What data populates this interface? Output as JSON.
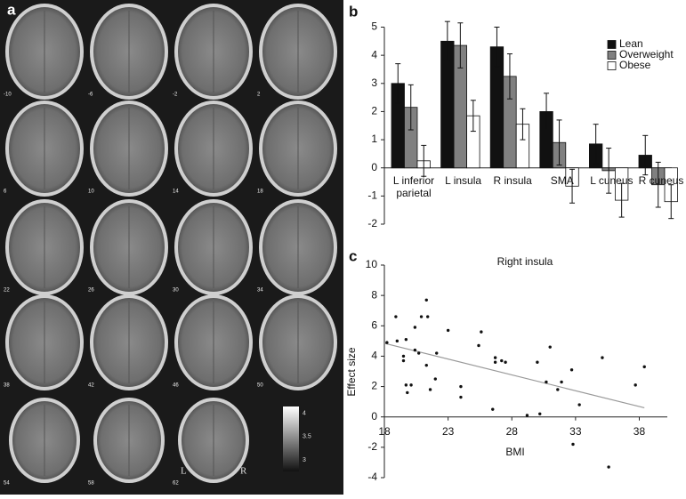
{
  "figure": {
    "panel_labels": [
      "a",
      "b",
      "c"
    ],
    "slices": [
      "-10",
      "-6",
      "-2",
      "2",
      "6",
      "10",
      "14",
      "18",
      "22",
      "26",
      "30",
      "34",
      "38",
      "42",
      "46",
      "50",
      "54",
      "58",
      "62"
    ],
    "colorbar_ticks": [
      {
        "value": 4,
        "label": "4"
      },
      {
        "value": 3.5,
        "label": "3.5"
      },
      {
        "value": 3,
        "label": "3"
      }
    ],
    "orientation": [
      "L",
      "R"
    ]
  },
  "chart_data": [
    {
      "type": "bar",
      "categories": [
        "L inferior parietal",
        "L insula",
        "R insula",
        "SMA",
        "L cuneus",
        "R cuneus"
      ],
      "series": [
        {
          "name": "Lean",
          "color": "#111111",
          "values": [
            3.0,
            4.5,
            4.3,
            2.0,
            0.85,
            0.45
          ],
          "errors": [
            0.7,
            0.7,
            0.7,
            0.65,
            0.7,
            0.7
          ]
        },
        {
          "name": "Overweight",
          "color": "#808080",
          "values": [
            2.15,
            4.35,
            3.25,
            0.9,
            -0.1,
            -0.6
          ],
          "errors": [
            0.8,
            0.8,
            0.8,
            0.8,
            0.8,
            0.8
          ]
        },
        {
          "name": "Obese",
          "color": "#ffffff",
          "values": [
            0.25,
            1.85,
            1.55,
            -0.65,
            -1.15,
            -1.2
          ],
          "errors": [
            0.55,
            0.55,
            0.55,
            0.6,
            0.6,
            0.6
          ]
        }
      ],
      "ylim": [
        -2,
        5
      ],
      "yticks": [
        -2,
        -1,
        0,
        1,
        2,
        3,
        4,
        5
      ],
      "legend": "upper right"
    },
    {
      "type": "scatter",
      "title": "Right insula",
      "xlabel": "BMI",
      "ylabel": "Effect size",
      "x": [
        18.2,
        18.9,
        19.0,
        19.5,
        19.5,
        19.7,
        19.7,
        19.8,
        20.1,
        20.4,
        20.4,
        20.7,
        20.9,
        21.3,
        21.4,
        21.3,
        21.6,
        22.0,
        22.1,
        23.0,
        24.0,
        24.0,
        25.4,
        25.6,
        26.5,
        26.7,
        26.7,
        27.2,
        27.5,
        29.2,
        30.0,
        30.2,
        30.7,
        31.0,
        31.6,
        31.9,
        32.7,
        32.8,
        33.3,
        35.1,
        35.6,
        37.7,
        38.4
      ],
      "y": [
        4.9,
        6.6,
        5.0,
        4.0,
        3.7,
        5.1,
        2.1,
        1.6,
        2.1,
        5.9,
        4.4,
        4.2,
        6.6,
        7.7,
        6.6,
        3.4,
        1.8,
        2.5,
        4.2,
        5.7,
        2.0,
        1.3,
        4.7,
        5.6,
        0.5,
        3.9,
        3.6,
        3.7,
        3.6,
        0.1,
        3.6,
        0.2,
        2.3,
        4.6,
        1.8,
        2.3,
        3.1,
        -1.8,
        0.8,
        3.9,
        -3.3,
        2.1,
        3.3
      ],
      "color": "#111111",
      "fit": {
        "x": [
          18,
          38.4
        ],
        "y": [
          4.85,
          0.6
        ],
        "color": "#999999"
      },
      "xlim": [
        18,
        40.2
      ],
      "xticks": [
        18,
        23,
        28,
        33,
        38
      ],
      "ylim": [
        -4,
        10
      ],
      "yticks": [
        -4,
        -2,
        0,
        2,
        4,
        6,
        8,
        10
      ]
    }
  ]
}
